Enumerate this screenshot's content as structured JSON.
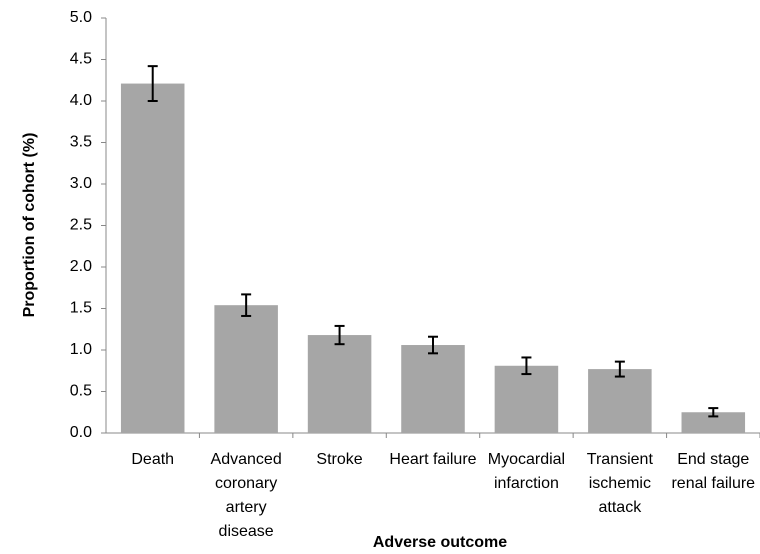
{
  "chart_data": {
    "type": "bar",
    "x_label": "Adverse outcome",
    "y_label": "Proportion of cohort (%)",
    "categories": [
      "Death",
      "Advanced coronary artery disease",
      "Stroke",
      "Heart failure",
      "Myocardial infarction",
      "Transient ischemic attack",
      "End stage renal failure"
    ],
    "values": [
      4.21,
      1.54,
      1.18,
      1.06,
      0.81,
      0.77,
      0.25
    ],
    "errors": [
      0.21,
      0.13,
      0.11,
      0.1,
      0.1,
      0.09,
      0.05
    ],
    "color": "#a6a6a6",
    "ylim": [
      0,
      5
    ],
    "yticks": [
      {
        "value": 0,
        "label": "0.0"
      },
      0.5,
      {
        "value": 1,
        "label": "1.0"
      },
      1.5,
      {
        "value": 2,
        "label": "2.0"
      },
      2.5,
      {
        "value": 3,
        "label": "3.0"
      },
      3.5,
      {
        "value": 4,
        "label": "4.0"
      },
      4.5,
      {
        "value": 5,
        "label": "5.0"
      }
    ],
    "grid": false
  }
}
